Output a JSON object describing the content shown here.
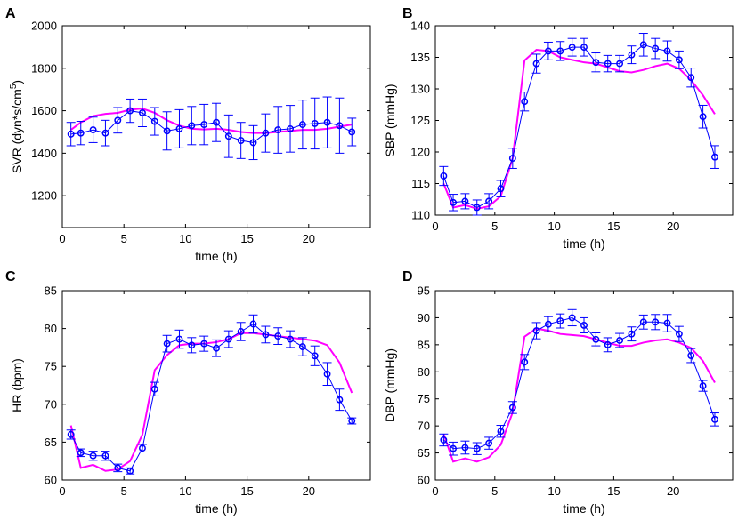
{
  "colors": {
    "model": "#ff00ff",
    "data": "#0000ff",
    "axis": "#000000"
  },
  "chart_data": [
    {
      "panel": "A",
      "type": "line",
      "xlabel": "time (h)",
      "ylabel": "SVR (dyn*s/cm",
      "ylabel_sup": "5",
      "ylabel_end": ")",
      "xlim": [
        0,
        25
      ],
      "ylim": [
        1050,
        2000
      ],
      "xticks": [
        0,
        5,
        10,
        15,
        20
      ],
      "yticks": [
        1200,
        1400,
        1600,
        1800,
        2000
      ],
      "series": [
        {
          "name": "model",
          "x": [
            0.7,
            1.5,
            2.5,
            3.5,
            4.5,
            5.5,
            6.5,
            7.5,
            8.5,
            9.5,
            10.5,
            11.5,
            12.5,
            13.5,
            14.5,
            15.5,
            16.5,
            17.5,
            18.5,
            19.5,
            20.5,
            21.5,
            22.5,
            23.5
          ],
          "y": [
            1510,
            1545,
            1575,
            1585,
            1590,
            1605,
            1610,
            1590,
            1555,
            1530,
            1515,
            1512,
            1515,
            1510,
            1500,
            1495,
            1495,
            1500,
            1505,
            1510,
            1510,
            1515,
            1525,
            1535
          ]
        },
        {
          "name": "data",
          "x": [
            0.7,
            1.5,
            2.5,
            3.5,
            4.5,
            5.5,
            6.5,
            7.5,
            8.5,
            9.5,
            10.5,
            11.5,
            12.5,
            13.5,
            14.5,
            15.5,
            16.5,
            17.5,
            18.5,
            19.5,
            20.5,
            21.5,
            22.5,
            23.5
          ],
          "y": [
            1490,
            1495,
            1510,
            1495,
            1555,
            1600,
            1590,
            1550,
            1505,
            1515,
            1530,
            1535,
            1545,
            1480,
            1460,
            1450,
            1495,
            1510,
            1515,
            1535,
            1540,
            1545,
            1530,
            1500
          ],
          "err": [
            55,
            55,
            60,
            60,
            60,
            55,
            65,
            65,
            90,
            90,
            90,
            95,
            90,
            100,
            85,
            80,
            90,
            110,
            110,
            115,
            120,
            120,
            130,
            65
          ]
        }
      ]
    },
    {
      "panel": "B",
      "type": "line",
      "xlabel": "time (h)",
      "ylabel": "SBP (mmHg)",
      "ylabel_sup": "",
      "ylabel_end": "",
      "xlim": [
        0,
        25
      ],
      "ylim": [
        110,
        140
      ],
      "xticks": [
        0,
        5,
        10,
        15,
        20
      ],
      "yticks": [
        110,
        115,
        120,
        125,
        130,
        135,
        140
      ],
      "series": [
        {
          "name": "model",
          "x": [
            0.7,
            1.5,
            2.5,
            3.5,
            4.5,
            5.5,
            6.5,
            7.5,
            8.5,
            9.5,
            10.5,
            11.5,
            12.5,
            13.5,
            14.5,
            15.5,
            16.5,
            17.5,
            18.5,
            19.5,
            20.5,
            21.5,
            22.5,
            23.5
          ],
          "y": [
            115.0,
            111.2,
            111.6,
            111.0,
            111.4,
            113.0,
            119.0,
            134.5,
            136.2,
            136.0,
            135.0,
            134.6,
            134.2,
            134.0,
            133.4,
            132.8,
            132.6,
            133.0,
            133.6,
            134.0,
            133.2,
            131.4,
            129.0,
            126.0
          ]
        },
        {
          "name": "data",
          "x": [
            0.7,
            1.5,
            2.5,
            3.5,
            4.5,
            5.5,
            6.5,
            7.5,
            8.5,
            9.5,
            10.5,
            11.5,
            12.5,
            13.5,
            14.5,
            15.5,
            16.5,
            17.5,
            18.5,
            19.5,
            20.5,
            21.5,
            22.5,
            23.5
          ],
          "y": [
            116.2,
            112.0,
            112.2,
            111.2,
            112.2,
            114.2,
            119.0,
            128.0,
            134.0,
            136.0,
            136.0,
            136.6,
            136.6,
            134.2,
            134.0,
            134.0,
            135.4,
            137.0,
            136.4,
            136.0,
            134.6,
            131.8,
            125.6,
            119.2
          ],
          "err": [
            1.5,
            1.3,
            1.2,
            1.2,
            1.2,
            1.3,
            1.6,
            1.5,
            1.5,
            1.4,
            1.5,
            1.4,
            1.4,
            1.5,
            1.3,
            1.3,
            1.4,
            1.8,
            1.6,
            1.6,
            1.4,
            1.5,
            1.8,
            1.8
          ]
        }
      ]
    },
    {
      "panel": "C",
      "type": "line",
      "xlabel": "time (h)",
      "ylabel": "HR (bpm)",
      "ylabel_sup": "",
      "ylabel_end": "",
      "xlim": [
        0,
        25
      ],
      "ylim": [
        60,
        85
      ],
      "xticks": [
        0,
        5,
        10,
        15,
        20
      ],
      "yticks": [
        60,
        65,
        70,
        75,
        80,
        85
      ],
      "series": [
        {
          "name": "model",
          "x": [
            0.7,
            1.5,
            2.5,
            3.5,
            4.5,
            5.5,
            6.5,
            7.5,
            8.5,
            9.5,
            10.5,
            11.5,
            12.5,
            13.5,
            14.5,
            15.5,
            16.5,
            17.5,
            18.5,
            19.5,
            20.5,
            21.5,
            22.5,
            23.5
          ],
          "y": [
            67.2,
            61.6,
            62.0,
            61.2,
            61.4,
            62.5,
            66.0,
            74.5,
            76.5,
            77.8,
            78.0,
            78.0,
            78.2,
            78.6,
            79.4,
            79.4,
            79.2,
            79.0,
            78.8,
            78.6,
            78.4,
            77.8,
            75.5,
            71.5
          ]
        },
        {
          "name": "data",
          "x": [
            0.7,
            1.5,
            2.5,
            3.5,
            4.5,
            5.5,
            6.5,
            7.5,
            8.5,
            9.5,
            10.5,
            11.5,
            12.5,
            13.5,
            14.5,
            15.5,
            16.5,
            17.5,
            18.5,
            19.5,
            20.5,
            21.5,
            22.5,
            23.5
          ],
          "y": [
            66.0,
            63.6,
            63.2,
            63.2,
            61.6,
            61.2,
            64.2,
            72.0,
            78.0,
            78.6,
            77.8,
            78.0,
            77.4,
            78.6,
            79.6,
            80.6,
            79.2,
            79.0,
            78.6,
            77.6,
            76.4,
            74.0,
            70.6,
            67.8
          ],
          "err": [
            0.6,
            0.5,
            0.6,
            0.6,
            0.5,
            0.4,
            0.5,
            0.9,
            1.1,
            1.2,
            1.0,
            1.0,
            1.1,
            1.1,
            1.2,
            1.2,
            1.1,
            1.1,
            1.1,
            1.2,
            1.3,
            1.5,
            1.4,
            0.4
          ]
        }
      ]
    },
    {
      "panel": "D",
      "type": "line",
      "xlabel": "time (h)",
      "ylabel": "DBP (mmHg)",
      "ylabel_sup": "",
      "ylabel_end": "",
      "xlim": [
        0,
        25
      ],
      "ylim": [
        60,
        95
      ],
      "xticks": [
        0,
        5,
        10,
        15,
        20
      ],
      "yticks": [
        60,
        65,
        70,
        75,
        80,
        85,
        90,
        95
      ],
      "series": [
        {
          "name": "model",
          "x": [
            0.7,
            1.5,
            2.5,
            3.5,
            4.5,
            5.5,
            6.5,
            7.5,
            8.5,
            9.5,
            10.5,
            11.5,
            12.5,
            13.5,
            14.5,
            15.5,
            16.5,
            17.5,
            18.5,
            19.5,
            20.5,
            21.5,
            22.5,
            23.5
          ],
          "y": [
            68.5,
            63.4,
            64.0,
            63.4,
            64.2,
            66.5,
            72.5,
            86.5,
            88.0,
            87.6,
            87.0,
            86.8,
            86.6,
            86.0,
            85.4,
            84.8,
            84.8,
            85.4,
            85.8,
            86.0,
            85.4,
            84.4,
            82.0,
            78.0
          ]
        },
        {
          "name": "data",
          "x": [
            0.7,
            1.5,
            2.5,
            3.5,
            4.5,
            5.5,
            6.5,
            7.5,
            8.5,
            9.5,
            10.5,
            11.5,
            12.5,
            13.5,
            14.5,
            15.5,
            16.5,
            17.5,
            18.5,
            19.5,
            20.5,
            21.5,
            22.5,
            23.5
          ],
          "y": [
            67.4,
            65.8,
            66.0,
            65.8,
            66.8,
            69.0,
            73.4,
            81.8,
            87.6,
            88.8,
            89.4,
            90.0,
            88.6,
            86.0,
            85.0,
            85.8,
            87.0,
            89.2,
            89.2,
            89.0,
            87.0,
            83.0,
            77.4,
            71.2
          ],
          "err": [
            1.1,
            1.2,
            1.2,
            1.1,
            1.1,
            1.1,
            1.1,
            1.4,
            1.5,
            1.4,
            1.3,
            1.5,
            1.4,
            1.2,
            1.3,
            1.3,
            1.3,
            1.3,
            1.4,
            1.6,
            1.4,
            1.3,
            1.0,
            1.2
          ]
        }
      ]
    }
  ]
}
